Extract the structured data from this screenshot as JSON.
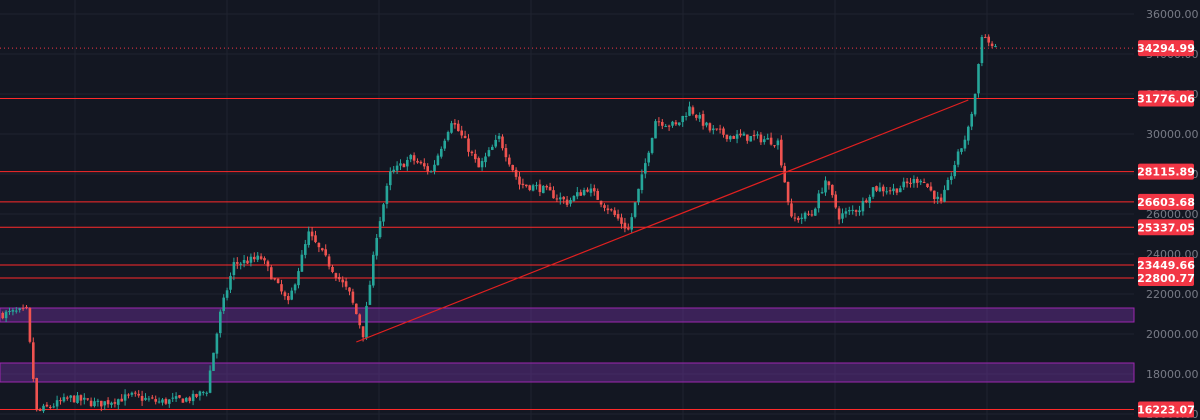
{
  "colors": {
    "background": "#131722",
    "grid": "#1f2330",
    "axis_text": "#787b86",
    "up": "#26a69a",
    "down": "#ef5350",
    "level_line": "#ff2a2a",
    "level_label_bg": "#f23645",
    "level_label_text": "#ffffff",
    "zone_fill": "rgba(109, 48, 156, 0.45)",
    "zone_border": "#9c27b0",
    "trendline": "#e02020",
    "current_price_line": "#f23645"
  },
  "chart_data": {
    "type": "candlestick",
    "y_axis": {
      "ticks": [
        "36000.00",
        "34000.00",
        "32000.00",
        "30000.00",
        "28000.00",
        "26000.00",
        "24000.00",
        "22000.00",
        "20000.00",
        "18000.00",
        "16000.00"
      ],
      "tick_values": [
        36000,
        34000,
        32000,
        30000,
        28000,
        26000,
        24000,
        22000,
        20000,
        18000,
        16000
      ],
      "range": [
        15700,
        36700
      ],
      "position": "right"
    },
    "current_price": {
      "value": 34294.99,
      "label": "34294.99"
    },
    "horizontal_levels": [
      {
        "value": 31776.06,
        "label": "31776.06"
      },
      {
        "value": 28115.89,
        "label": "28115.89"
      },
      {
        "value": 26603.68,
        "label": "26603.68"
      },
      {
        "value": 25337.05,
        "label": "25337.05"
      },
      {
        "value": 23449.66,
        "label": "23449.66"
      },
      {
        "value": 22800.77,
        "label": "22800.77"
      },
      {
        "value": 16223.07,
        "label": "16223.07"
      }
    ],
    "zones": [
      {
        "from": 20600,
        "to": 21300
      },
      {
        "from": 17600,
        "to": 18550
      }
    ],
    "trendline": {
      "from": {
        "index": 104,
        "price": 19600
      },
      "to": {
        "index": 284,
        "price": 31700
      }
    },
    "anchors": [
      [
        0,
        21000
      ],
      [
        7,
        21150
      ],
      [
        10,
        16100
      ],
      [
        20,
        16800
      ],
      [
        28,
        16500
      ],
      [
        38,
        16900
      ],
      [
        46,
        16600
      ],
      [
        56,
        16800
      ],
      [
        60,
        17200
      ],
      [
        64,
        21000
      ],
      [
        68,
        23500
      ],
      [
        76,
        23800
      ],
      [
        84,
        21500
      ],
      [
        90,
        25000
      ],
      [
        96,
        23500
      ],
      [
        102,
        22000
      ],
      [
        106,
        20000
      ],
      [
        110,
        25000
      ],
      [
        114,
        28000
      ],
      [
        120,
        28800
      ],
      [
        126,
        28100
      ],
      [
        132,
        30700
      ],
      [
        136,
        29600
      ],
      [
        140,
        28300
      ],
      [
        146,
        29800
      ],
      [
        152,
        27500
      ],
      [
        158,
        27300
      ],
      [
        166,
        26600
      ],
      [
        172,
        27300
      ],
      [
        178,
        26300
      ],
      [
        184,
        25200
      ],
      [
        188,
        27800
      ],
      [
        192,
        30700
      ],
      [
        198,
        30400
      ],
      [
        202,
        31300
      ],
      [
        208,
        30200
      ],
      [
        214,
        29900
      ],
      [
        222,
        29800
      ],
      [
        228,
        29600
      ],
      [
        232,
        25700
      ],
      [
        238,
        26000
      ],
      [
        242,
        27700
      ],
      [
        246,
        25900
      ],
      [
        252,
        26300
      ],
      [
        256,
        27300
      ],
      [
        262,
        27200
      ],
      [
        270,
        27800
      ],
      [
        276,
        26500
      ],
      [
        280,
        28500
      ],
      [
        284,
        30200
      ],
      [
        286,
        32000
      ],
      [
        288,
        35000
      ],
      [
        292,
        34200
      ]
    ]
  }
}
